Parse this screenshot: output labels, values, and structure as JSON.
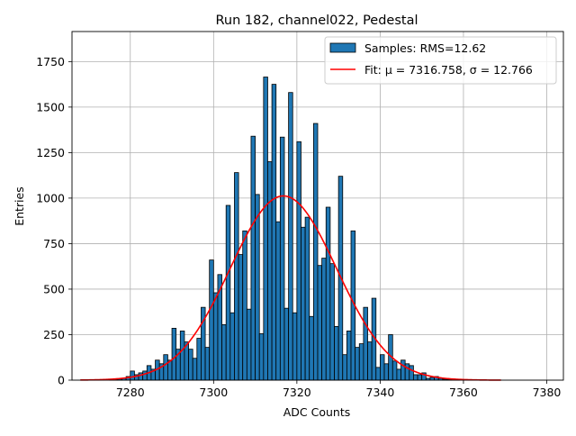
{
  "chart_data": {
    "type": "bar",
    "title": "Run 182, channel022, Pedestal",
    "xlabel": "ADC Counts",
    "ylabel": "Entries",
    "xlim": [
      7266,
      7384
    ],
    "ylim": [
      0,
      1915
    ],
    "xticks": [
      7280,
      7300,
      7320,
      7340,
      7360,
      7380
    ],
    "yticks": [
      0,
      250,
      500,
      750,
      1000,
      1250,
      1500,
      1750
    ],
    "grid": true,
    "legend_position": "top-right",
    "colors": {
      "bars": "#1f77b4",
      "fit": "#ff0000"
    },
    "series": [
      {
        "name": "Samples: RMS=12.62",
        "kind": "histogram",
        "bin_start": 7275,
        "bin_width": 1,
        "values": [
          2,
          3,
          6,
          10,
          20,
          50,
          30,
          40,
          50,
          80,
          60,
          110,
          90,
          140,
          110,
          285,
          170,
          270,
          210,
          170,
          120,
          230,
          400,
          180,
          660,
          480,
          580,
          305,
          960,
          370,
          1140,
          690,
          820,
          390,
          1340,
          1020,
          255,
          1665,
          1200,
          1625,
          870,
          1335,
          395,
          1580,
          370,
          1310,
          840,
          895,
          350,
          1410,
          630,
          670,
          950,
          640,
          295,
          1120,
          140,
          270,
          820,
          180,
          200,
          400,
          210,
          450,
          70,
          140,
          90,
          250,
          105,
          60,
          110,
          90,
          80,
          30,
          30,
          40,
          10,
          15,
          20,
          10,
          5,
          4,
          3,
          2
        ]
      },
      {
        "name": "Fit: μ = 7316.758, σ = 12.766",
        "kind": "gaussian",
        "mu": 7316.758,
        "sigma": 12.766,
        "amplitude": 1012,
        "x_range": [
          7268,
          7369
        ]
      }
    ]
  }
}
